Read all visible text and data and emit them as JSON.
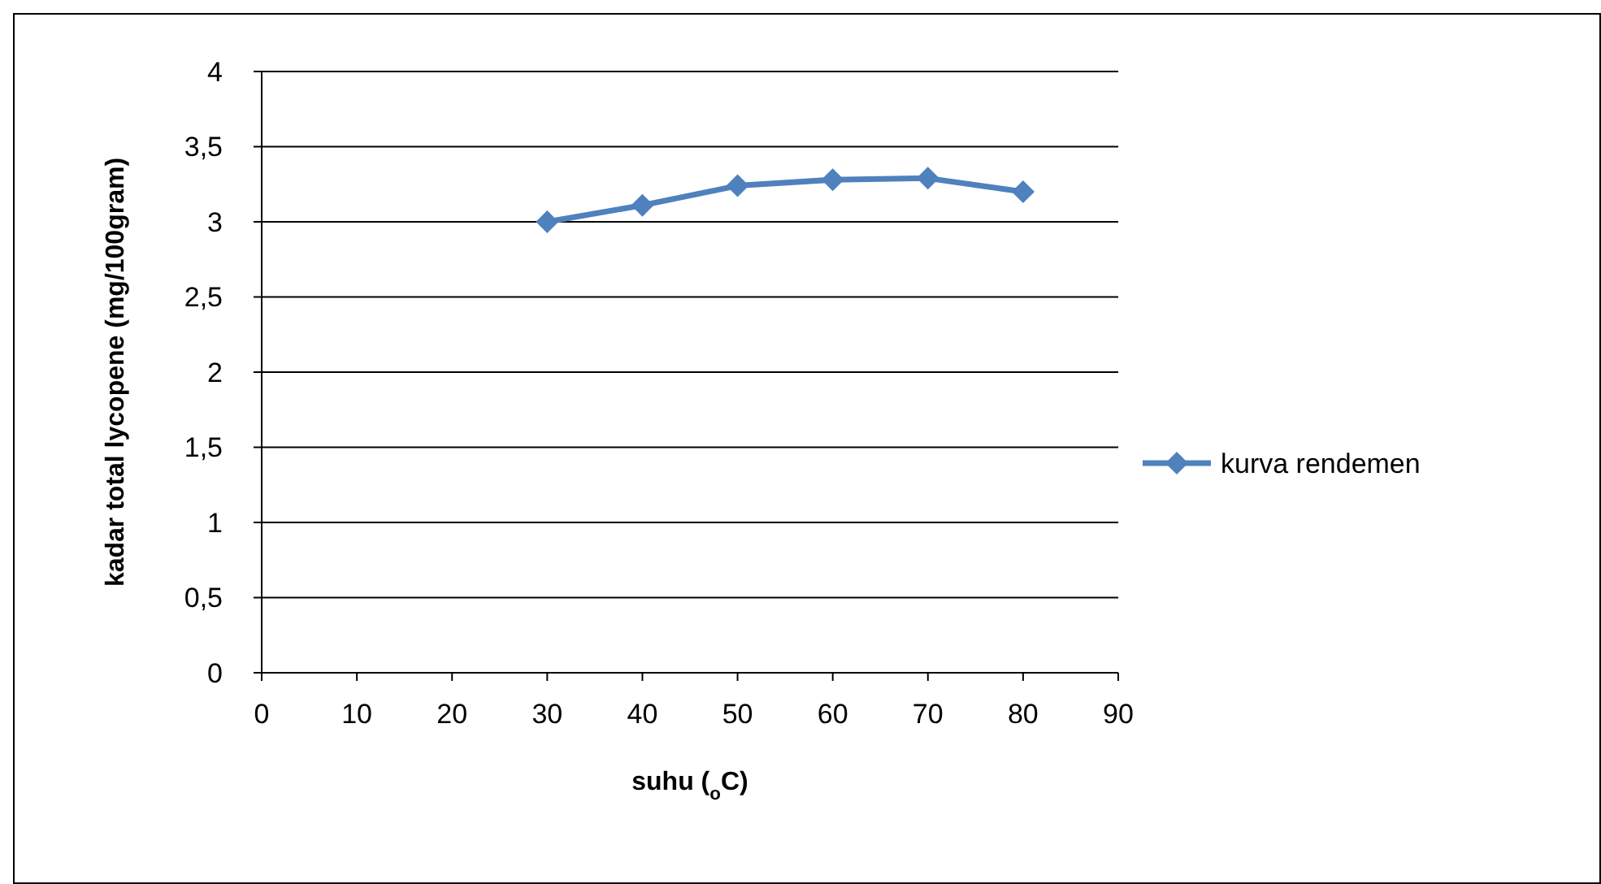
{
  "chart_data": {
    "type": "line",
    "xlabel": "suhu ($_{o}$C)",
    "ylabel": "kadar total lycopene (mg/100gram)",
    "x": [
      30,
      40,
      50,
      60,
      70,
      80
    ],
    "series": [
      {
        "name": "kurva rendemen",
        "color": "#4f81bd",
        "values": [
          3.0,
          3.11,
          3.24,
          3.28,
          3.29,
          3.2
        ]
      }
    ],
    "xlim": [
      0,
      90
    ],
    "xticks": [
      0,
      10,
      20,
      30,
      40,
      50,
      60,
      70,
      80,
      90
    ],
    "ylim": [
      0,
      4
    ],
    "yticks": [
      0,
      {
        "value": 0.5,
        "label": "0,5"
      },
      1,
      {
        "value": 1.5,
        "label": "1,5"
      },
      2,
      {
        "value": 2.5,
        "label": "2,5"
      },
      3,
      {
        "value": 3.5,
        "label": "3,5"
      },
      4
    ],
    "grid": "y",
    "legend": "right",
    "marker": "diamond",
    "line_style": "solid"
  }
}
